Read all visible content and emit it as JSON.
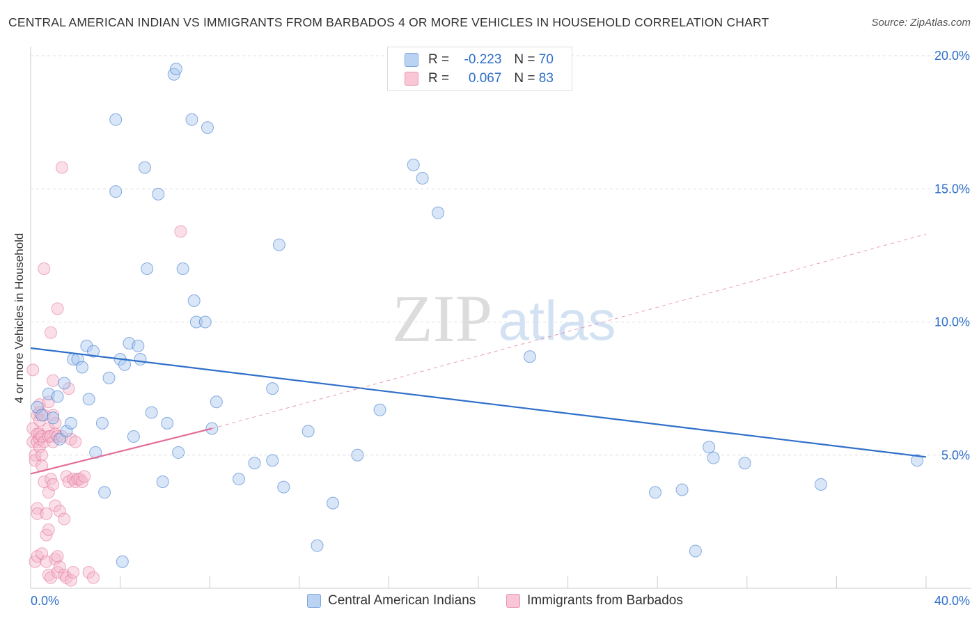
{
  "title": "CENTRAL AMERICAN INDIAN VS IMMIGRANTS FROM BARBADOS 4 OR MORE VEHICLES IN HOUSEHOLD CORRELATION CHART",
  "source": "Source: ZipAtlas.com",
  "watermark": {
    "zip": "ZIP",
    "atlas": "atlas"
  },
  "colors": {
    "blue": "#2f6fc9",
    "blue_fill": "#a9c8f0",
    "pink": "#e36d98",
    "pink_fill": "#f5b8cb",
    "grid": "#dddddd"
  },
  "legend": {
    "rows": [
      {
        "r_label": "R =",
        "r_value": "-0.223",
        "n_label": "N =",
        "n_value": "70"
      },
      {
        "r_label": "R =",
        "r_value": "0.067",
        "n_label": "N =",
        "n_value": "83"
      }
    ]
  },
  "bottom_legend": [
    "Central American Indians",
    "Immigrants from Barbados"
  ],
  "chart_data": {
    "type": "scatter",
    "title": "CENTRAL AMERICAN INDIAN VS IMMIGRANTS FROM BARBADOS 4 OR MORE VEHICLES IN HOUSEHOLD CORRELATION CHART",
    "xlabel": "",
    "ylabel": "4 or more Vehicles in Household",
    "xlim": [
      0,
      40
    ],
    "ylim": [
      0,
      20
    ],
    "x_tick_labels": [
      "0.0%",
      "40.0%"
    ],
    "y_ticks": [
      5,
      10,
      15,
      20
    ],
    "y_tick_labels": [
      "5.0%",
      "10.0%",
      "15.0%",
      "20.0%"
    ],
    "series": [
      {
        "name": "Central American Indians",
        "color": "#2f6fc9",
        "points": [
          [
            0.3,
            6.8
          ],
          [
            0.5,
            6.5
          ],
          [
            0.8,
            7.3
          ],
          [
            1.0,
            6.4
          ],
          [
            1.2,
            7.2
          ],
          [
            1.3,
            5.6
          ],
          [
            1.5,
            7.7
          ],
          [
            1.6,
            5.9
          ],
          [
            1.8,
            6.2
          ],
          [
            1.9,
            8.6
          ],
          [
            2.1,
            8.6
          ],
          [
            2.3,
            8.3
          ],
          [
            2.5,
            9.1
          ],
          [
            2.6,
            7.1
          ],
          [
            2.8,
            8.9
          ],
          [
            2.9,
            5.1
          ],
          [
            3.2,
            6.2
          ],
          [
            3.3,
            3.6
          ],
          [
            3.5,
            7.9
          ],
          [
            3.8,
            17.6
          ],
          [
            3.8,
            14.9
          ],
          [
            4.0,
            8.6
          ],
          [
            4.1,
            1.0
          ],
          [
            4.2,
            8.4
          ],
          [
            4.4,
            9.2
          ],
          [
            4.6,
            5.7
          ],
          [
            4.8,
            9.1
          ],
          [
            4.9,
            8.6
          ],
          [
            5.1,
            15.8
          ],
          [
            5.2,
            12.0
          ],
          [
            5.4,
            6.6
          ],
          [
            5.7,
            14.8
          ],
          [
            5.9,
            4.0
          ],
          [
            6.1,
            6.2
          ],
          [
            6.4,
            19.3
          ],
          [
            6.5,
            19.5
          ],
          [
            6.6,
            5.1
          ],
          [
            6.8,
            12.0
          ],
          [
            7.2,
            17.6
          ],
          [
            7.3,
            10.8
          ],
          [
            7.4,
            10.0
          ],
          [
            7.8,
            10.0
          ],
          [
            7.9,
            17.3
          ],
          [
            8.1,
            6.0
          ],
          [
            8.3,
            7.0
          ],
          [
            9.3,
            4.1
          ],
          [
            10.0,
            4.7
          ],
          [
            10.8,
            7.5
          ],
          [
            10.8,
            4.8
          ],
          [
            11.1,
            12.9
          ],
          [
            11.3,
            3.8
          ],
          [
            12.4,
            5.9
          ],
          [
            12.8,
            1.6
          ],
          [
            13.5,
            3.2
          ],
          [
            14.6,
            5.0
          ],
          [
            15.6,
            6.7
          ],
          [
            17.1,
            15.9
          ],
          [
            17.5,
            15.4
          ],
          [
            18.2,
            14.1
          ],
          [
            22.3,
            8.7
          ],
          [
            27.9,
            3.6
          ],
          [
            29.1,
            3.7
          ],
          [
            29.7,
            1.4
          ],
          [
            30.3,
            5.3
          ],
          [
            30.5,
            4.9
          ],
          [
            31.9,
            4.7
          ],
          [
            35.3,
            3.9
          ],
          [
            39.6,
            4.8
          ]
        ],
        "trendline": {
          "x": [
            0,
            40
          ],
          "y": [
            9.02,
            4.93
          ]
        }
      },
      {
        "name": "Immigrants from Barbados",
        "color": "#e36d98",
        "points": [
          [
            0.1,
            8.2
          ],
          [
            0.1,
            6.0
          ],
          [
            0.1,
            5.5
          ],
          [
            0.2,
            5.0
          ],
          [
            0.2,
            4.8
          ],
          [
            0.2,
            1.0
          ],
          [
            0.3,
            6.5
          ],
          [
            0.3,
            5.8
          ],
          [
            0.3,
            5.5
          ],
          [
            0.3,
            3.0
          ],
          [
            0.3,
            2.8
          ],
          [
            0.3,
            1.2
          ],
          [
            0.4,
            6.9
          ],
          [
            0.4,
            6.6
          ],
          [
            0.4,
            6.3
          ],
          [
            0.4,
            5.8
          ],
          [
            0.4,
            5.6
          ],
          [
            0.4,
            5.3
          ],
          [
            0.5,
            5.7
          ],
          [
            0.5,
            5.0
          ],
          [
            0.5,
            4.6
          ],
          [
            0.5,
            1.3
          ],
          [
            0.6,
            12.0
          ],
          [
            0.6,
            6.5
          ],
          [
            0.6,
            5.5
          ],
          [
            0.6,
            4.0
          ],
          [
            0.7,
            2.8
          ],
          [
            0.7,
            2.0
          ],
          [
            0.7,
            1.0
          ],
          [
            0.8,
            7.0
          ],
          [
            0.8,
            6.0
          ],
          [
            0.8,
            5.7
          ],
          [
            0.8,
            3.6
          ],
          [
            0.8,
            2.2
          ],
          [
            0.8,
            0.5
          ],
          [
            0.9,
            9.6
          ],
          [
            0.9,
            5.7
          ],
          [
            0.9,
            4.1
          ],
          [
            0.9,
            0.4
          ],
          [
            1.0,
            7.8
          ],
          [
            1.0,
            6.5
          ],
          [
            1.0,
            5.5
          ],
          [
            1.0,
            3.9
          ],
          [
            1.1,
            6.2
          ],
          [
            1.1,
            5.8
          ],
          [
            1.1,
            3.1
          ],
          [
            1.1,
            1.1
          ],
          [
            1.2,
            10.5
          ],
          [
            1.2,
            5.7
          ],
          [
            1.2,
            1.2
          ],
          [
            1.2,
            0.6
          ],
          [
            1.3,
            2.9
          ],
          [
            1.3,
            0.8
          ],
          [
            1.4,
            15.8
          ],
          [
            1.4,
            5.7
          ],
          [
            1.5,
            2.6
          ],
          [
            1.5,
            0.5
          ],
          [
            1.6,
            4.2
          ],
          [
            1.6,
            0.4
          ],
          [
            1.7,
            7.5
          ],
          [
            1.7,
            4.0
          ],
          [
            1.8,
            5.6
          ],
          [
            1.8,
            0.3
          ],
          [
            1.9,
            4.1
          ],
          [
            1.9,
            0.6
          ],
          [
            2.0,
            5.5
          ],
          [
            2.0,
            4.0
          ],
          [
            2.1,
            4.1
          ],
          [
            2.2,
            4.1
          ],
          [
            2.3,
            4.0
          ],
          [
            2.4,
            4.2
          ],
          [
            2.6,
            0.6
          ],
          [
            2.8,
            0.4
          ],
          [
            6.7,
            13.4
          ]
        ],
        "trendline": {
          "x": [
            0,
            8.1
          ],
          "y": [
            4.3,
            6.0
          ]
        },
        "trendline_extension": {
          "x": [
            8.1,
            40
          ],
          "y": [
            6.0,
            13.3
          ]
        }
      }
    ]
  }
}
